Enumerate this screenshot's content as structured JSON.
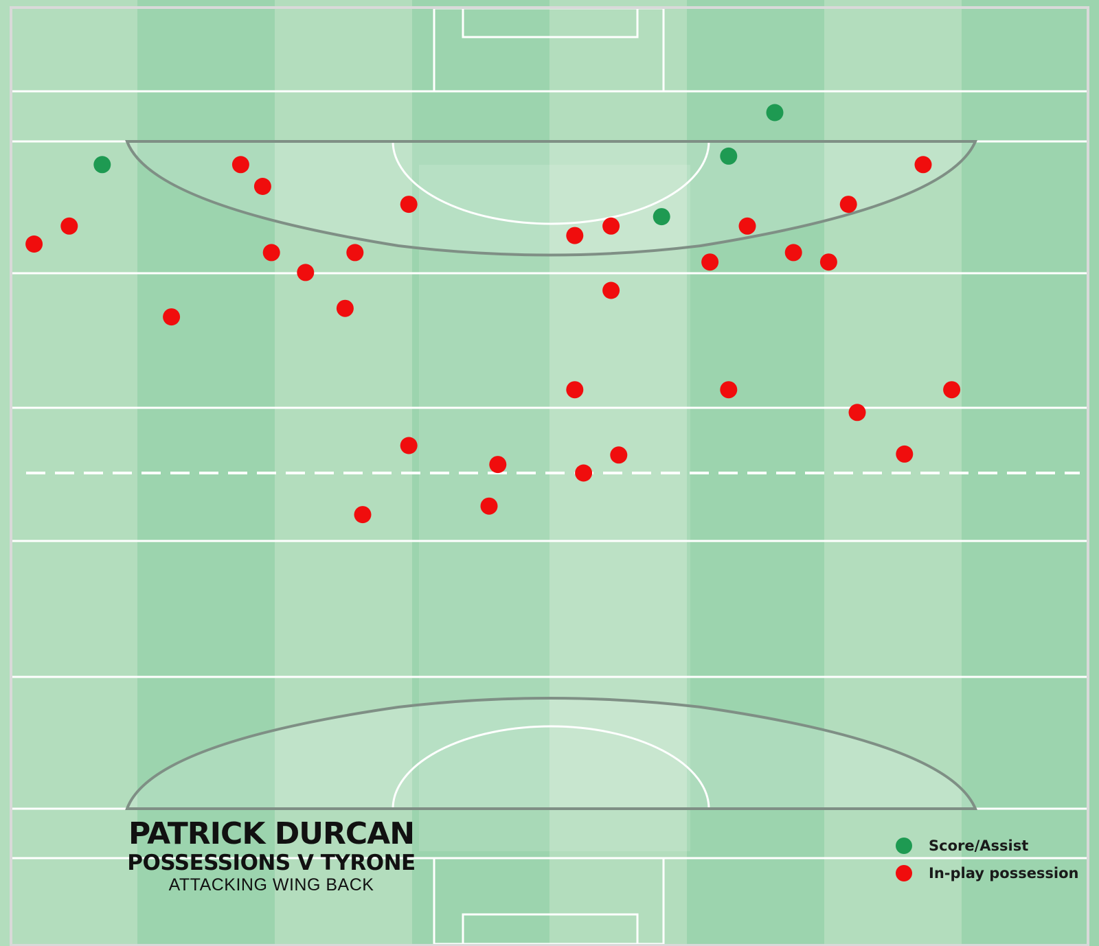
{
  "colors": {
    "score": "#1e9a52",
    "possession": "#f00d0d",
    "stripe_light": "#b3ddbd",
    "stripe_dark": "#9cd4ae",
    "line": "#ffffff"
  },
  "title": {
    "player": "PATRICK DURCAN",
    "subtitle": "POSSESSIONS V TYRONE",
    "role": "ATTACKING WING BACK"
  },
  "legend": {
    "items": [
      {
        "label": "Score/Assist",
        "color": "#1e9a52"
      },
      {
        "label": "In-play possession",
        "color": "#f00d0d"
      }
    ]
  },
  "chart_data": {
    "type": "scatter",
    "title": "",
    "xlabel": "",
    "ylabel": "",
    "xlim": [
      0,
      1
    ],
    "ylim": [
      0,
      1
    ],
    "grid": false,
    "legend_position": "bottom-right",
    "series": [
      {
        "name": "Score/Assist",
        "color": "#1e9a52",
        "points": [
          {
            "x": 0.093,
            "y": 0.174
          },
          {
            "x": 0.705,
            "y": 0.119
          },
          {
            "x": 0.663,
            "y": 0.165
          },
          {
            "x": 0.602,
            "y": 0.229
          }
        ]
      },
      {
        "name": "In-play possession",
        "color": "#f00d0d",
        "points": [
          {
            "x": 0.219,
            "y": 0.174
          },
          {
            "x": 0.239,
            "y": 0.197
          },
          {
            "x": 0.372,
            "y": 0.216
          },
          {
            "x": 0.063,
            "y": 0.239
          },
          {
            "x": 0.031,
            "y": 0.258
          },
          {
            "x": 0.247,
            "y": 0.267
          },
          {
            "x": 0.323,
            "y": 0.267
          },
          {
            "x": 0.278,
            "y": 0.288
          },
          {
            "x": 0.314,
            "y": 0.326
          },
          {
            "x": 0.156,
            "y": 0.335
          },
          {
            "x": 0.523,
            "y": 0.249
          },
          {
            "x": 0.556,
            "y": 0.239
          },
          {
            "x": 0.68,
            "y": 0.239
          },
          {
            "x": 0.646,
            "y": 0.277
          },
          {
            "x": 0.722,
            "y": 0.267
          },
          {
            "x": 0.754,
            "y": 0.277
          },
          {
            "x": 0.772,
            "y": 0.216
          },
          {
            "x": 0.84,
            "y": 0.174
          },
          {
            "x": 0.556,
            "y": 0.307
          },
          {
            "x": 0.523,
            "y": 0.412
          },
          {
            "x": 0.663,
            "y": 0.412
          },
          {
            "x": 0.866,
            "y": 0.412
          },
          {
            "x": 0.78,
            "y": 0.436
          },
          {
            "x": 0.823,
            "y": 0.48
          },
          {
            "x": 0.372,
            "y": 0.471
          },
          {
            "x": 0.453,
            "y": 0.491
          },
          {
            "x": 0.563,
            "y": 0.481
          },
          {
            "x": 0.531,
            "y": 0.5
          },
          {
            "x": 0.445,
            "y": 0.535
          },
          {
            "x": 0.33,
            "y": 0.544
          }
        ]
      }
    ]
  }
}
